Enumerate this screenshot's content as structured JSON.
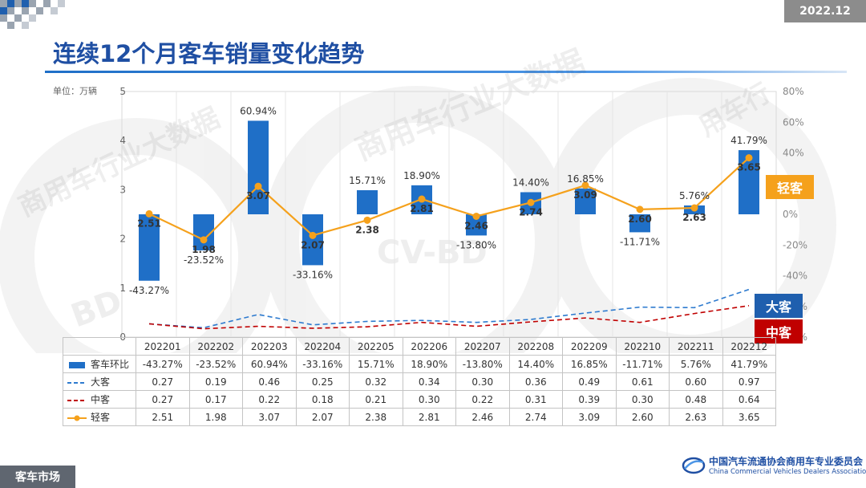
{
  "header": {
    "date": "2022.12",
    "title": "连续12个月客车销量变化趋势",
    "unit": "单位：万辆"
  },
  "footer": {
    "section": "客车市场",
    "org_cn": "中国汽车流通协会商用车专业委员会",
    "org_en": "China Commercial Vehicles Dealers Association"
  },
  "watermark": {
    "arc": "商用车行业大数据",
    "center": "CV-BD",
    "side": "BD",
    "arc2": "用车行"
  },
  "series_tags": {
    "light": "轻客",
    "large": "大客",
    "medium": "中客"
  },
  "chart_data": {
    "type": "bar+line",
    "categories": [
      "202201",
      "202202",
      "202203",
      "202204",
      "202205",
      "202206",
      "202207",
      "202208",
      "202209",
      "202210",
      "202211",
      "202212"
    ],
    "y_left": {
      "label": "单位：万辆",
      "range": [
        0,
        5
      ],
      "ticks": [
        "0",
        "1",
        "2",
        "3",
        "4",
        "5"
      ]
    },
    "y_right": {
      "range": [
        -80,
        80
      ],
      "ticks": [
        "80%",
        "60%",
        "40%",
        "20%",
        "0%",
        "-20%",
        "-40%",
        "-60%",
        "-80%"
      ]
    },
    "series": [
      {
        "name": "客车环比",
        "type": "bar",
        "axis": "right",
        "color": "#1f6fc7",
        "values": [
          -43.27,
          -23.52,
          60.94,
          -33.16,
          15.71,
          18.9,
          -13.8,
          14.4,
          16.85,
          -11.71,
          5.76,
          41.79
        ],
        "labels": [
          "-43.27%",
          "-23.52%",
          "60.94%",
          "-33.16%",
          "15.71%",
          "18.90%",
          "-13.80%",
          "14.40%",
          "16.85%",
          "-11.71%",
          "5.76%",
          "41.79%"
        ]
      },
      {
        "name": "大客",
        "type": "line",
        "style": "dashed",
        "axis": "left",
        "color": "#2e7bcf",
        "values": [
          0.27,
          0.19,
          0.46,
          0.25,
          0.32,
          0.34,
          0.3,
          0.36,
          0.49,
          0.61,
          0.6,
          0.97
        ],
        "labels": [
          "0.27",
          "0.19",
          "0.46",
          "0.25",
          "0.32",
          "0.34",
          "0.30",
          "0.36",
          "0.49",
          "0.61",
          "0.60",
          "0.97"
        ]
      },
      {
        "name": "中客",
        "type": "line",
        "style": "dashed",
        "axis": "left",
        "color": "#c00000",
        "values": [
          0.27,
          0.17,
          0.22,
          0.18,
          0.21,
          0.3,
          0.22,
          0.31,
          0.39,
          0.3,
          0.48,
          0.64
        ],
        "labels": [
          "0.27",
          "0.17",
          "0.22",
          "0.18",
          "0.21",
          "0.30",
          "0.22",
          "0.31",
          "0.39",
          "0.30",
          "0.48",
          "0.64"
        ]
      },
      {
        "name": "轻客",
        "type": "line",
        "style": "solid-marker",
        "axis": "left",
        "color": "#f5a11c",
        "values": [
          2.51,
          1.98,
          3.07,
          2.07,
          2.38,
          2.81,
          2.46,
          2.74,
          3.09,
          2.6,
          2.63,
          3.65
        ],
        "labels": [
          "2.51",
          "1.98",
          "3.07",
          "2.07",
          "2.38",
          "2.81",
          "2.46",
          "2.74",
          "3.09",
          "2.60",
          "2.63",
          "3.65"
        ]
      }
    ]
  }
}
